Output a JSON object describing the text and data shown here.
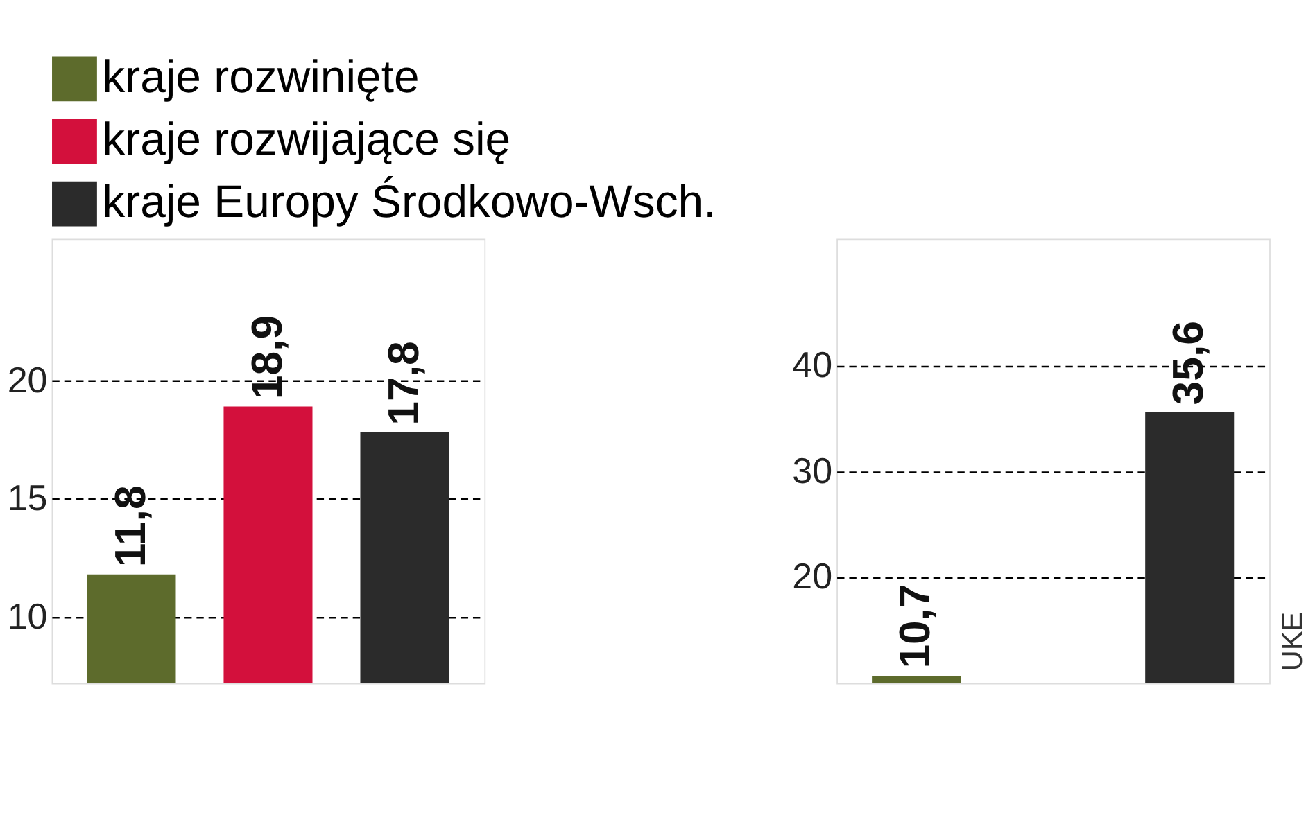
{
  "chart_data": [
    {
      "type": "bar",
      "categories": [
        null
      ],
      "ylim": [
        7.2,
        26
      ],
      "yticks": [
        10,
        15,
        20
      ],
      "grid": "y",
      "legend": "top",
      "series": [
        {
          "name": "kraje rozwinięte",
          "color": "#5d6b2c",
          "values": [
            11.8
          ],
          "value_labels": [
            "11,8"
          ]
        },
        {
          "name": "kraje rozwijające się",
          "color": "#d3103c",
          "values": [
            18.9
          ],
          "value_labels": [
            "18,9"
          ]
        },
        {
          "name": "kraje Europy Środkowo-Wsch.",
          "color": "#2b2b2b",
          "values": [
            17.8
          ],
          "value_labels": [
            "17,8"
          ]
        }
      ]
    },
    {
      "type": "bar",
      "categories": [
        null
      ],
      "ylim": [
        10,
        52
      ],
      "yticks": [
        20,
        30,
        40
      ],
      "grid": "y",
      "annotations": [
        "UKE"
      ],
      "series": [
        {
          "color": "#5d6b2c",
          "values": [
            10.7
          ],
          "value_labels": [
            "10,7"
          ]
        },
        {
          "color": "#d3103c",
          "values": [
            null
          ],
          "value_labels": [
            null
          ]
        },
        {
          "color": "#2b2b2b",
          "values": [
            35.6
          ],
          "value_labels": [
            "35,6"
          ]
        }
      ]
    }
  ]
}
